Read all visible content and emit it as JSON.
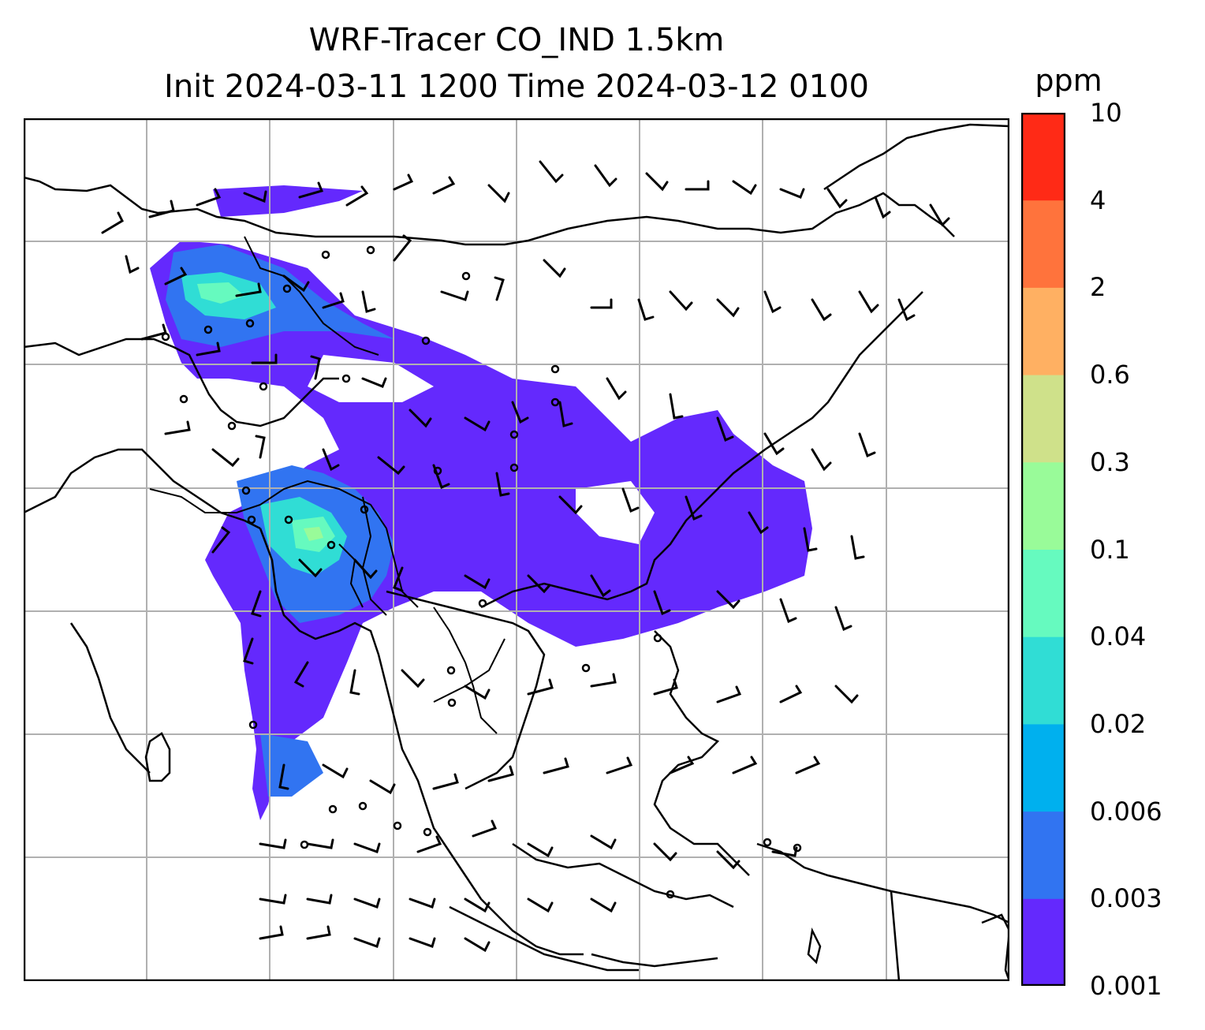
{
  "title": {
    "line1": "WRF-Tracer CO_IND 1.5km",
    "line2": "Init 2024-03-11 1200 Time 2024-03-12 0100"
  },
  "colorbar": {
    "unit": "ppm",
    "ticks": [
      "0.001",
      "0.003",
      "0.006",
      "0.02",
      "0.04",
      "0.1",
      "0.3",
      "0.6",
      "2",
      "4",
      "10"
    ],
    "colors": [
      "#6429fd",
      "#3174f1",
      "#00b0ee",
      "#30ddd5",
      "#66fabf",
      "#99fb99",
      "#cfe18a",
      "#ffb062",
      "#ff733c",
      "#ff2a16"
    ]
  },
  "map": {
    "field": "CO_IND",
    "overlay": [
      "coastlines",
      "country-borders",
      "wind-barbs",
      "lat-lon-grid"
    ],
    "grid": true
  }
}
